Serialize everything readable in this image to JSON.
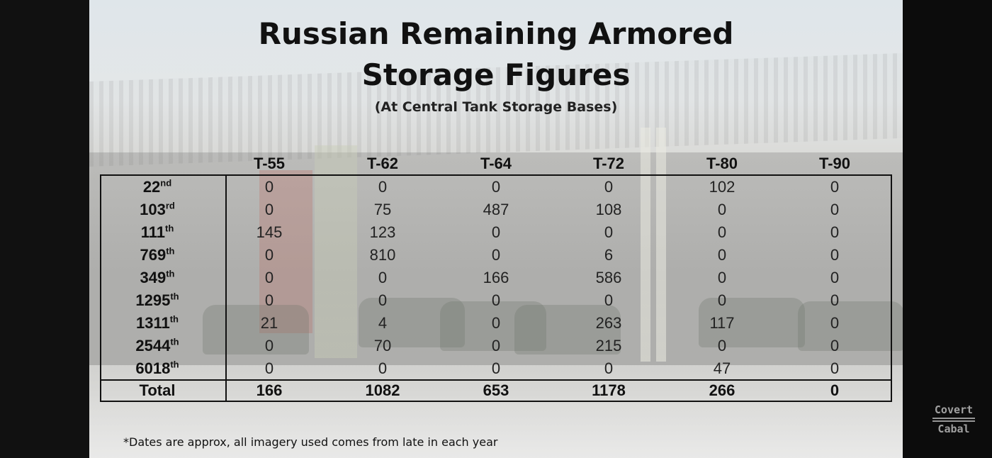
{
  "slide": {
    "title_line1": "Russian Remaining Armored",
    "title_line2": "Storage Figures",
    "subtitle": "(At Central Tank Storage Bases)",
    "footnote": "*Dates are approx, all imagery used comes from late in each year",
    "logo_line1": "Covert",
    "logo_line2": "Cabal"
  },
  "chart_data": {
    "type": "table",
    "title": "Russian Remaining Armored Storage Figures",
    "subtitle": "(At Central Tank Storage Bases)",
    "columns": [
      "T-55",
      "T-62",
      "T-64",
      "T-72",
      "T-80",
      "T-90"
    ],
    "rows": [
      {
        "base": "22",
        "suffix": "nd",
        "values": [
          0,
          0,
          0,
          0,
          102,
          0
        ]
      },
      {
        "base": "103",
        "suffix": "rd",
        "values": [
          0,
          75,
          487,
          108,
          0,
          0
        ]
      },
      {
        "base": "111",
        "suffix": "th",
        "values": [
          145,
          123,
          0,
          0,
          0,
          0
        ]
      },
      {
        "base": "769",
        "suffix": "th",
        "values": [
          0,
          810,
          0,
          6,
          0,
          0
        ]
      },
      {
        "base": "349",
        "suffix": "th",
        "values": [
          0,
          0,
          166,
          586,
          0,
          0
        ]
      },
      {
        "base": "1295",
        "suffix": "th",
        "values": [
          0,
          0,
          0,
          0,
          0,
          0
        ]
      },
      {
        "base": "1311",
        "suffix": "th",
        "values": [
          21,
          4,
          0,
          263,
          117,
          0
        ]
      },
      {
        "base": "2544",
        "suffix": "th",
        "values": [
          0,
          70,
          0,
          215,
          0,
          0
        ]
      },
      {
        "base": "6018",
        "suffix": "th",
        "values": [
          0,
          0,
          0,
          0,
          47,
          0
        ]
      }
    ],
    "total_label": "Total",
    "totals": [
      166,
      1082,
      653,
      1178,
      266,
      0
    ]
  }
}
